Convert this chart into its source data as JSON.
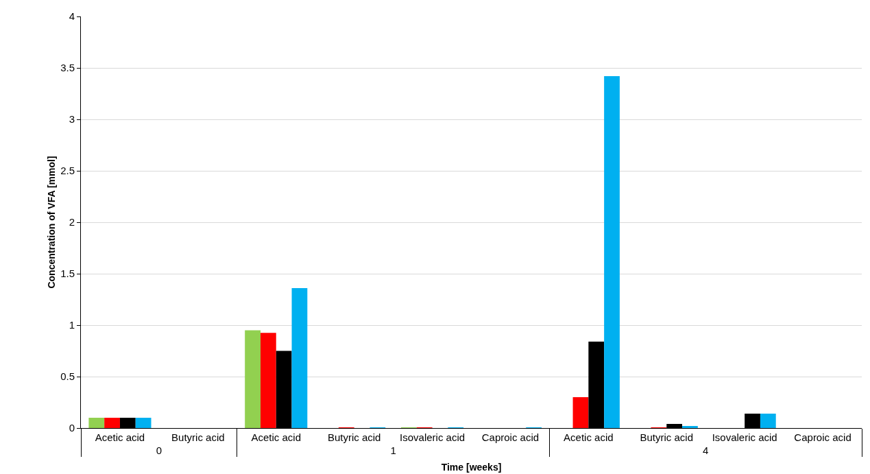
{
  "chart_data": {
    "type": "bar",
    "xlabel": "Time [weeks]",
    "ylabel": "Concentration of VFA [mmol]",
    "categories": [
      "Acetic acid",
      "Butyric acid",
      "Acetic acid",
      "Butyric acid",
      "Isovaleric acid",
      "Caproic acid",
      "Acetic acid",
      "Butyric acid",
      "Isovaleric acid",
      "Caproic acid"
    ],
    "annotations": [
      "0",
      "1",
      "4"
    ],
    "series": [
      {
        "color": "#92d050",
        "values": [
          0.1,
          0,
          0.95,
          0,
          0.005,
          0,
          0,
          0,
          0,
          0
        ]
      },
      {
        "color": "#ff0000",
        "values": [
          0.1,
          0,
          0.925,
          0.005,
          0.005,
          0,
          0.3,
          0.005,
          0,
          0
        ]
      },
      {
        "color": "#000000",
        "values": [
          0.1,
          0,
          0.75,
          null,
          null,
          0,
          0.84,
          0.04,
          0.14,
          0
        ]
      },
      {
        "color": "#00b0f0",
        "values": [
          0.1,
          0,
          1.36,
          0.005,
          0.005,
          0.005,
          3.42,
          0.02,
          0.14,
          0
        ]
      }
    ],
    "ylim": [
      0,
      4
    ],
    "yticks": [
      0,
      0.5,
      1,
      1.5,
      2,
      2.5,
      3,
      3.5,
      4
    ],
    "grid": "y"
  }
}
